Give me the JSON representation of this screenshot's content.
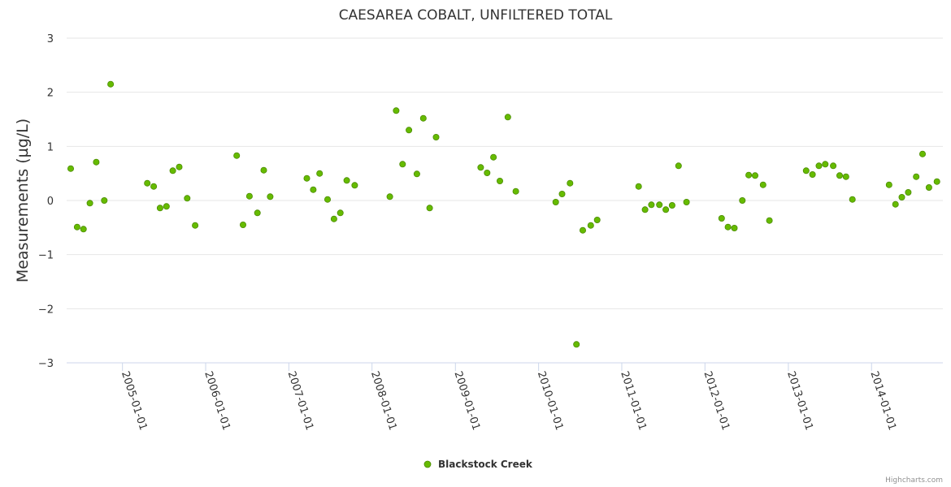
{
  "chart_data": {
    "type": "scatter",
    "title": "CAESAREA COBALT, UNFILTERED TOTAL",
    "ylabel": "Measurements (µg/L)",
    "xlabel": "",
    "ylim": [
      -3,
      3
    ],
    "yticks": [
      "−3",
      "−2",
      "−1",
      "0",
      "1",
      "2",
      "3"
    ],
    "xlim": [
      "2004-05-01",
      "2014-11-10"
    ],
    "xticks": [
      "2005-01-01",
      "2006-01-01",
      "2007-01-01",
      "2008-01-01",
      "2009-01-01",
      "2010-01-01",
      "2011-01-01",
      "2012-01-01",
      "2013-01-01",
      "2014-01-01"
    ],
    "grid": true,
    "legend_position": "bottom-center",
    "series": [
      {
        "name": "Blackstock Creek",
        "color": "#66bb00",
        "points": [
          {
            "x": "2004-05-19",
            "y": 0.59
          },
          {
            "x": "2004-06-16",
            "y": -0.49
          },
          {
            "x": "2004-07-14",
            "y": -0.53
          },
          {
            "x": "2004-08-11",
            "y": -0.05
          },
          {
            "x": "2004-09-08",
            "y": 0.71
          },
          {
            "x": "2004-10-13",
            "y": 0.0
          },
          {
            "x": "2004-11-10",
            "y": 2.15
          },
          {
            "x": "2005-04-20",
            "y": 0.32
          },
          {
            "x": "2005-05-18",
            "y": 0.26
          },
          {
            "x": "2005-06-15",
            "y": -0.14
          },
          {
            "x": "2005-07-13",
            "y": -0.11
          },
          {
            "x": "2005-08-10",
            "y": 0.55
          },
          {
            "x": "2005-09-07",
            "y": 0.62
          },
          {
            "x": "2005-10-12",
            "y": 0.04
          },
          {
            "x": "2005-11-16",
            "y": -0.46
          },
          {
            "x": "2006-05-17",
            "y": 0.83
          },
          {
            "x": "2006-06-14",
            "y": -0.45
          },
          {
            "x": "2006-07-12",
            "y": 0.08
          },
          {
            "x": "2006-08-16",
            "y": -0.23
          },
          {
            "x": "2006-09-13",
            "y": 0.56
          },
          {
            "x": "2006-10-11",
            "y": 0.07
          },
          {
            "x": "2007-03-21",
            "y": 0.41
          },
          {
            "x": "2007-04-18",
            "y": 0.2
          },
          {
            "x": "2007-05-16",
            "y": 0.5
          },
          {
            "x": "2007-06-20",
            "y": 0.02
          },
          {
            "x": "2007-07-18",
            "y": -0.34
          },
          {
            "x": "2007-08-15",
            "y": -0.23
          },
          {
            "x": "2007-09-12",
            "y": 0.37
          },
          {
            "x": "2007-10-17",
            "y": 0.28
          },
          {
            "x": "2008-03-19",
            "y": 0.07
          },
          {
            "x": "2008-04-16",
            "y": 1.66
          },
          {
            "x": "2008-05-14",
            "y": 0.67
          },
          {
            "x": "2008-06-11",
            "y": 1.3
          },
          {
            "x": "2008-07-16",
            "y": 0.49
          },
          {
            "x": "2008-08-13",
            "y": 1.52
          },
          {
            "x": "2008-09-10",
            "y": -0.14
          },
          {
            "x": "2008-10-08",
            "y": 1.17
          },
          {
            "x": "2009-04-22",
            "y": 0.61
          },
          {
            "x": "2009-05-20",
            "y": 0.51
          },
          {
            "x": "2009-06-17",
            "y": 0.8
          },
          {
            "x": "2009-07-15",
            "y": 0.36
          },
          {
            "x": "2009-08-19",
            "y": 1.54
          },
          {
            "x": "2009-09-23",
            "y": 0.17
          },
          {
            "x": "2010-03-17",
            "y": -0.03
          },
          {
            "x": "2010-04-14",
            "y": 0.12
          },
          {
            "x": "2010-05-19",
            "y": 0.32
          },
          {
            "x": "2010-06-16",
            "y": -2.66
          },
          {
            "x": "2010-07-14",
            "y": -0.55
          },
          {
            "x": "2010-08-18",
            "y": -0.46
          },
          {
            "x": "2010-09-15",
            "y": -0.36
          },
          {
            "x": "2011-03-16",
            "y": 0.26
          },
          {
            "x": "2011-04-13",
            "y": -0.17
          },
          {
            "x": "2011-05-11",
            "y": -0.08
          },
          {
            "x": "2011-06-15",
            "y": -0.08
          },
          {
            "x": "2011-07-13",
            "y": -0.17
          },
          {
            "x": "2011-08-10",
            "y": -0.09
          },
          {
            "x": "2011-09-07",
            "y": 0.64
          },
          {
            "x": "2011-10-12",
            "y": -0.03
          },
          {
            "x": "2012-03-14",
            "y": -0.33
          },
          {
            "x": "2012-04-11",
            "y": -0.49
          },
          {
            "x": "2012-05-09",
            "y": -0.51
          },
          {
            "x": "2012-06-13",
            "y": 0.0
          },
          {
            "x": "2012-07-11",
            "y": 0.47
          },
          {
            "x": "2012-08-08",
            "y": 0.46
          },
          {
            "x": "2012-09-12",
            "y": 0.29
          },
          {
            "x": "2012-10-10",
            "y": -0.37
          },
          {
            "x": "2013-03-20",
            "y": 0.55
          },
          {
            "x": "2013-04-17",
            "y": 0.48
          },
          {
            "x": "2013-05-15",
            "y": 0.64
          },
          {
            "x": "2013-06-12",
            "y": 0.67
          },
          {
            "x": "2013-07-17",
            "y": 0.64
          },
          {
            "x": "2013-08-14",
            "y": 0.46
          },
          {
            "x": "2013-09-11",
            "y": 0.44
          },
          {
            "x": "2013-10-09",
            "y": 0.02
          },
          {
            "x": "2014-03-19",
            "y": 0.29
          },
          {
            "x": "2014-04-16",
            "y": -0.07
          },
          {
            "x": "2014-05-14",
            "y": 0.06
          },
          {
            "x": "2014-06-11",
            "y": 0.15
          },
          {
            "x": "2014-07-16",
            "y": 0.44
          },
          {
            "x": "2014-08-13",
            "y": 0.86
          },
          {
            "x": "2014-09-10",
            "y": 0.24
          },
          {
            "x": "2014-10-15",
            "y": 0.35
          }
        ]
      }
    ]
  },
  "credits": "Highcharts.com"
}
